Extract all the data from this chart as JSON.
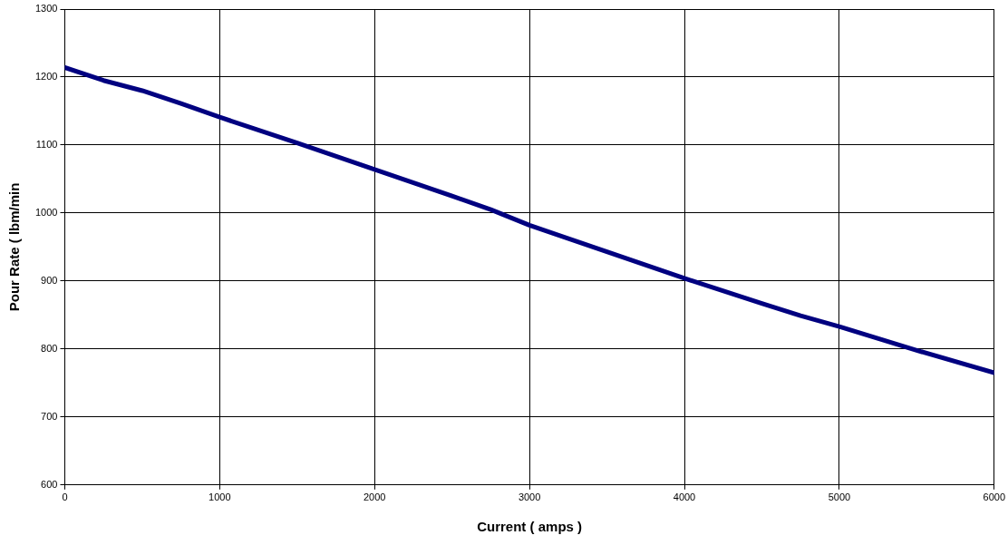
{
  "chart_data": {
    "type": "line",
    "xlabel": "Current ( amps )",
    "ylabel": "Pour Rate ( lbm/min",
    "x": [
      0,
      250,
      500,
      750,
      1000,
      1500,
      2000,
      2500,
      2750,
      3000,
      3500,
      4000,
      4500,
      4750,
      5000,
      5500,
      6000
    ],
    "series": [
      {
        "color": "#000080",
        "values": [
          1214,
          1195,
          1180,
          1161,
          1141,
          1103,
          1064,
          1025,
          1005,
          982,
          943,
          904,
          867,
          849,
          833,
          798,
          765
        ]
      }
    ],
    "xlim": [
      0,
      6000
    ],
    "xticks": [
      0,
      1000,
      2000,
      3000,
      4000,
      5000,
      6000
    ],
    "ylim": [
      600,
      1300
    ],
    "yticks": [
      600,
      700,
      800,
      900,
      1000,
      1100,
      1200,
      1300
    ],
    "grid": true,
    "legend": false,
    "marker": "none",
    "line_style": "solid"
  }
}
